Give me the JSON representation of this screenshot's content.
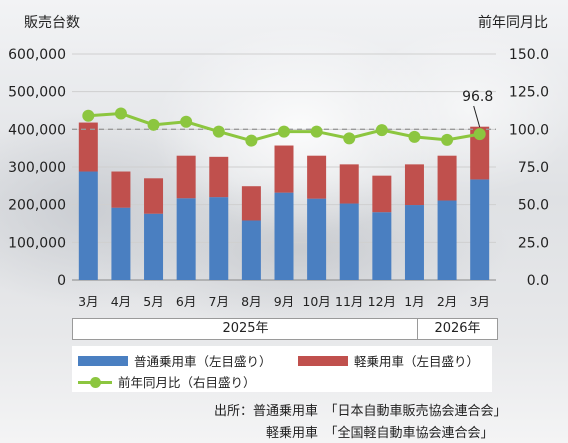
{
  "chart_data": {
    "type": "bar",
    "left_axis_title": "販売台数",
    "right_axis_title": "前年同月比",
    "categories": [
      "3月",
      "4月",
      "5月",
      "6月",
      "7月",
      "8月",
      "9月",
      "10月",
      "11月",
      "12月",
      "1月",
      "2月",
      "3月"
    ],
    "year_groups": [
      {
        "label": "2025年",
        "from": 0,
        "to": 9
      },
      {
        "label": "2026年",
        "from": 10,
        "to": 12
      }
    ],
    "left_axis": {
      "min": 0,
      "max": 600000,
      "ticks": [
        "0",
        "100,000",
        "200,000",
        "300,000",
        "400,000",
        "500,000",
        "600,000"
      ]
    },
    "right_axis": {
      "min": 0,
      "max": 150,
      "ticks": [
        "0.0",
        "25.0",
        "50.0",
        "75.0",
        "100.0",
        "125.0",
        "150.0"
      ]
    },
    "series": [
      {
        "name": "普通乗用車（左目盛り）",
        "kind": "bar-stack",
        "color": "#4a7fc1",
        "values": [
          288000,
          192000,
          176000,
          217000,
          220000,
          158000,
          232000,
          216000,
          203000,
          180000,
          199000,
          211000,
          267000
        ]
      },
      {
        "name": "軽乗用車（左目盛り）",
        "kind": "bar-stack",
        "color": "#c0504d",
        "values": [
          130000,
          96000,
          94000,
          113000,
          107000,
          91000,
          125000,
          114000,
          104000,
          97000,
          108000,
          119000,
          140000
        ]
      },
      {
        "name": "前年同月比（右目盛り）",
        "kind": "line",
        "color": "#8cc63f",
        "values": [
          109,
          110.5,
          103,
          105,
          98.5,
          92.5,
          98.5,
          98.5,
          94,
          99.5,
          95,
          93,
          96.8
        ]
      }
    ],
    "reference_line": 100,
    "annotation": {
      "label": "96.8",
      "index": 12
    }
  },
  "source": {
    "line1": "出所：普通乗用車　「日本自動車販売協会連合会」",
    "line2": "軽乗用車　「全国軽自動車協会連合会」"
  }
}
